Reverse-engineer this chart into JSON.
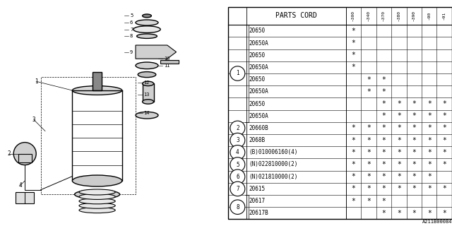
{
  "bg_color": "#ffffff",
  "diagram_color": "#000000",
  "col_labels_short": [
    "~300",
    "~340",
    "~370",
    "~380",
    "~390",
    "~90",
    "~91"
  ],
  "parts": [
    {
      "item": "1",
      "code": "20650",
      "marks": [
        1,
        0,
        0,
        0,
        0,
        0,
        0
      ]
    },
    {
      "item": "1",
      "code": "20650A",
      "marks": [
        1,
        0,
        0,
        0,
        0,
        0,
        0
      ]
    },
    {
      "item": "1",
      "code": "20650",
      "marks": [
        1,
        0,
        0,
        0,
        0,
        0,
        0
      ]
    },
    {
      "item": "1",
      "code": "20650A",
      "marks": [
        1,
        0,
        0,
        0,
        0,
        0,
        0
      ]
    },
    {
      "item": "1",
      "code": "20650",
      "marks": [
        0,
        1,
        1,
        0,
        0,
        0,
        0
      ]
    },
    {
      "item": "1",
      "code": "20650A",
      "marks": [
        0,
        1,
        1,
        0,
        0,
        0,
        0
      ]
    },
    {
      "item": "1",
      "code": "20650",
      "marks": [
        0,
        0,
        1,
        1,
        1,
        1,
        1
      ]
    },
    {
      "item": "1",
      "code": "20650A",
      "marks": [
        0,
        0,
        1,
        1,
        1,
        1,
        1
      ]
    },
    {
      "item": "2",
      "code": "20660B",
      "marks": [
        1,
        1,
        1,
        1,
        1,
        1,
        1
      ]
    },
    {
      "item": "3",
      "code": "2068B",
      "marks": [
        1,
        1,
        1,
        1,
        1,
        1,
        1
      ]
    },
    {
      "item": "4",
      "code": "(B)010006160(4)",
      "marks": [
        1,
        1,
        1,
        1,
        1,
        1,
        1
      ]
    },
    {
      "item": "5",
      "code": "(N)022810000(2)",
      "marks": [
        1,
        1,
        1,
        1,
        1,
        1,
        1
      ]
    },
    {
      "item": "6",
      "code": "(N)021810000(2)",
      "marks": [
        1,
        1,
        1,
        1,
        1,
        1,
        0
      ]
    },
    {
      "item": "7",
      "code": "20615",
      "marks": [
        1,
        1,
        1,
        1,
        1,
        1,
        1
      ]
    },
    {
      "item": "8",
      "code": "20617",
      "marks": [
        1,
        1,
        1,
        0,
        0,
        0,
        0
      ]
    },
    {
      "item": "8",
      "code": "20617B",
      "marks": [
        0,
        0,
        1,
        1,
        1,
        1,
        1
      ]
    }
  ],
  "watermark": "A211B00084"
}
